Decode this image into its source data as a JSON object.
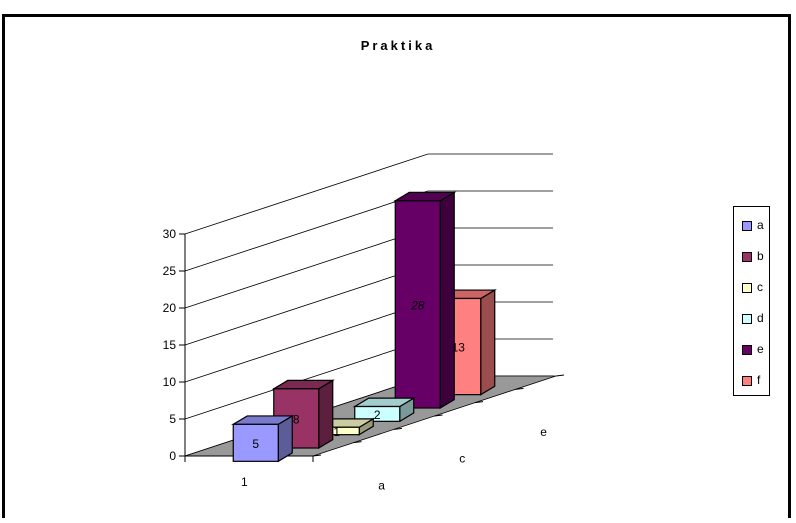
{
  "chart_data": {
    "type": "bar",
    "title": "Praktika",
    "categories": [
      "1"
    ],
    "depth_labels": [
      "a",
      "c",
      "e"
    ],
    "ylim": [
      0,
      30
    ],
    "yticks": [
      0,
      5,
      10,
      15,
      20,
      25,
      30
    ],
    "series": [
      {
        "name": "a",
        "values": [
          5
        ],
        "color": "#9999FF"
      },
      {
        "name": "b",
        "values": [
          8
        ],
        "color": "#993366"
      },
      {
        "name": "c",
        "values": [
          1
        ],
        "color": "#FFFFCC"
      },
      {
        "name": "d",
        "values": [
          2
        ],
        "color": "#CCFFFF"
      },
      {
        "name": "e",
        "values": [
          28
        ],
        "color": "#660066"
      },
      {
        "name": "f",
        "values": [
          13
        ],
        "color": "#FF8080"
      }
    ],
    "data_labels": [
      "5",
      "8",
      "1",
      "2",
      "28",
      "13"
    ],
    "grid": true,
    "legend": "right"
  }
}
